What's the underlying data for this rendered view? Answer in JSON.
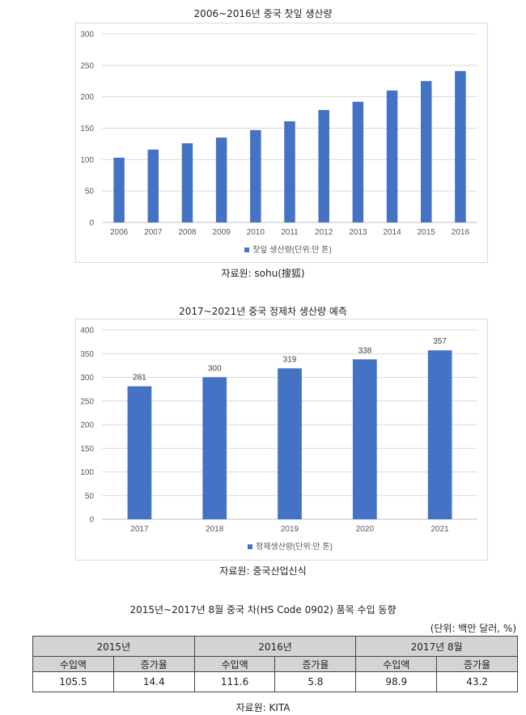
{
  "chart1": {
    "title": "2006~2016년 중국 찻잎 생산량",
    "source": "자료원: sohu(搜狐)",
    "legend": "찻잎 생산량(단위:만 톤)",
    "color": "#4472c4",
    "chart_data": {
      "type": "bar",
      "categories": [
        "2006",
        "2007",
        "2008",
        "2009",
        "2010",
        "2011",
        "2012",
        "2013",
        "2014",
        "2015",
        "2016"
      ],
      "values": [
        103,
        116,
        126,
        135,
        147,
        161,
        179,
        192,
        210,
        225,
        241
      ],
      "ylim": [
        0,
        300
      ],
      "yticks": [
        0,
        50,
        100,
        150,
        200,
        250,
        300
      ],
      "legend_position": "bottom",
      "grid": true
    }
  },
  "chart2": {
    "title": "2017~2021년 중국 정제차 생산량 예측",
    "source": "자료원: 중국산업신식",
    "legend": "정제생산량(단위:만 톤)",
    "color": "#4472c4",
    "chart_data": {
      "type": "bar",
      "categories": [
        "2017",
        "2018",
        "2019",
        "2020",
        "2021"
      ],
      "values": [
        281,
        300,
        319,
        338,
        357
      ],
      "data_labels": [
        "281",
        "300",
        "319",
        "338",
        "357"
      ],
      "ylim": [
        0,
        400
      ],
      "yticks": [
        0,
        50,
        100,
        150,
        200,
        250,
        300,
        350,
        400
      ],
      "legend_position": "bottom",
      "grid": true
    }
  },
  "table": {
    "title": "2015년~2017년 8월 중국 차(HS Code 0902) 품목 수입 동향",
    "unit": "(단위: 백만 달러, %)",
    "years": [
      "2015년",
      "2016년",
      "2017년 8월"
    ],
    "subheaders": [
      "수입액",
      "증가율",
      "수입액",
      "증가율",
      "수입액",
      "증가율"
    ],
    "values": [
      "105.5",
      "14.4",
      "111.6",
      "5.8",
      "98.9",
      "43.2"
    ],
    "source": "자료원: KITA"
  }
}
